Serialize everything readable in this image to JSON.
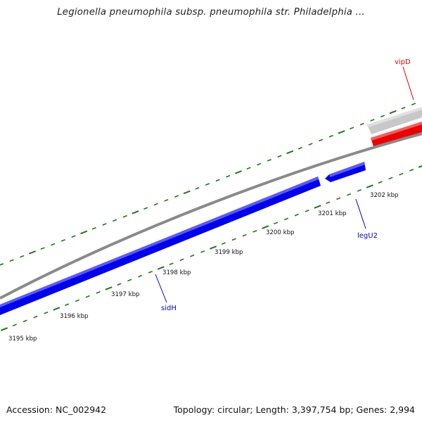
{
  "title": "Legionella pneumophila subsp. pneumophila str. Philadelphia ...",
  "footer": {
    "accession": "Accession: NC_002942",
    "summary": "Topology: circular; Length: 3,397,754 bp; Genes: 2,994"
  },
  "scale_labels": [
    "3195 kbp",
    "3196 kbp",
    "3197 kbp",
    "3198 kbp",
    "3199 kbp",
    "3200 kbp",
    "3201 kbp",
    "3202 kbp"
  ],
  "genes": [
    {
      "name": "vipD",
      "color": "#dd0000"
    },
    {
      "name": "legU2",
      "color": "#0000cc"
    },
    {
      "name": "sidH",
      "color": "#0000cc"
    }
  ],
  "colors": {
    "tick": "#1a7a1a",
    "backbone": "#8a8a8a",
    "forward_gene": "#0000ee",
    "highlight_gene": "#ee0000",
    "other_gene": "#c8c8c8"
  }
}
